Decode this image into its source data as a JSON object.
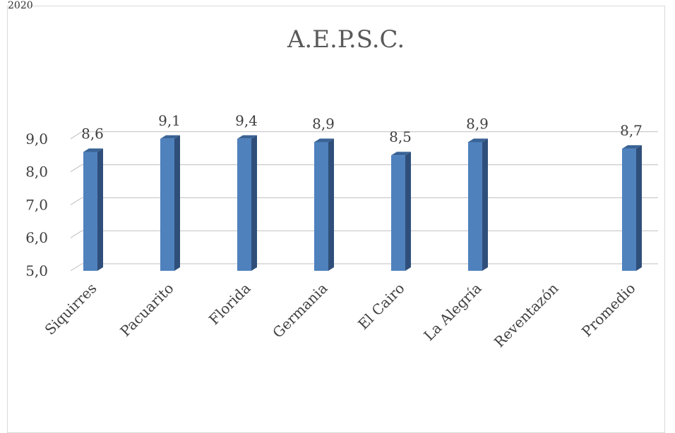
{
  "corner_text": "2020",
  "chart_data": {
    "type": "bar",
    "title": "A.E.P.S.C.",
    "categories": [
      "Siquirres",
      "Pacuarito",
      "Florida",
      "Germania",
      "El Cairo",
      "La Alegría",
      "Reventazón",
      "Promedio"
    ],
    "values": [
      8.6,
      9.1,
      9.4,
      8.9,
      8.5,
      8.9,
      null,
      8.7
    ],
    "value_labels": [
      "8,6",
      "9,1",
      "9,4",
      "8,9",
      "8,5",
      "8,9",
      "",
      "8,7"
    ],
    "yticks": [
      5.0,
      6.0,
      7.0,
      8.0,
      9.0
    ],
    "ytick_labels": [
      "5,0",
      "6,0",
      "7,0",
      "8,0",
      "9,0"
    ],
    "ylim": [
      5.0,
      9.0
    ],
    "grid": true,
    "bar_color": "#4f81bd",
    "bar_side_color": "#2f4f7a",
    "bar_top_color": "#3a6496",
    "gridline_color": "#bfbfbf"
  }
}
